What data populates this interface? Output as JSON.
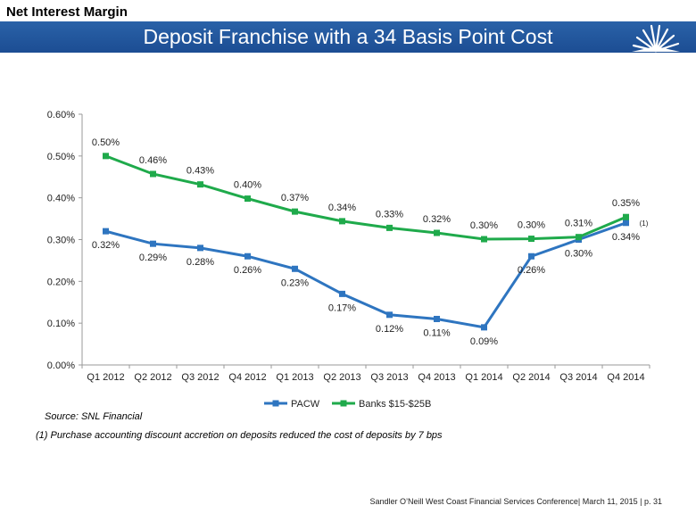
{
  "header": {
    "section_title": "Net Interest Margin",
    "banner_title": "Deposit Franchise with a 34 Basis Point Cost",
    "banner_color": "#1f4f96",
    "logo_icon": "sunburst-logo-icon"
  },
  "chart_data": {
    "type": "line",
    "title": "",
    "xlabel": "",
    "ylabel": "",
    "ylim": [
      0,
      0.6
    ],
    "y_ticks": [
      "0.00%",
      "0.10%",
      "0.20%",
      "0.30%",
      "0.40%",
      "0.50%",
      "0.60%"
    ],
    "y_tick_values": [
      0,
      0.1,
      0.2,
      0.3,
      0.4,
      0.5,
      0.6
    ],
    "grid": false,
    "legend_position": "bottom",
    "categories": [
      "Q1 2012",
      "Q2 2012",
      "Q3 2012",
      "Q4 2012",
      "Q1 2013",
      "Q2 2013",
      "Q3 2013",
      "Q4 2013",
      "Q1 2014",
      "Q2 2014",
      "Q3 2014",
      "Q4 2014"
    ],
    "series": [
      {
        "name": "PACW",
        "color": "#2e75c0",
        "values": [
          0.32,
          0.29,
          0.28,
          0.26,
          0.23,
          0.17,
          0.12,
          0.11,
          0.09,
          0.26,
          0.3,
          0.34
        ],
        "labels": [
          "0.32%",
          "0.29%",
          "0.28%",
          "0.26%",
          "0.23%",
          "0.17%",
          "0.12%",
          "0.11%",
          "0.09%",
          "0.26%",
          "0.30%",
          "0.34%"
        ],
        "label_position": "below"
      },
      {
        "name": "Banks $15-$25B",
        "color": "#1faa4b",
        "values": [
          0.5,
          0.457,
          0.432,
          0.398,
          0.367,
          0.344,
          0.328,
          0.316,
          0.301,
          0.302,
          0.306,
          0.354
        ],
        "labels": [
          "0.50%",
          "0.46%",
          "0.43%",
          "0.40%",
          "0.37%",
          "0.34%",
          "0.33%",
          "0.32%",
          "0.30%",
          "0.30%",
          "0.31%",
          "0.35%"
        ],
        "label_position": "above"
      }
    ],
    "annotation": "(1)"
  },
  "source": "Source: SNL Financial",
  "footnote": "(1)  Purchase accounting discount accretion on deposits reduced the cost of deposits by 7 bps",
  "footer": "Sandler O’Neill West Coast Financial Services Conference| March 11, 2015 | p. 31"
}
